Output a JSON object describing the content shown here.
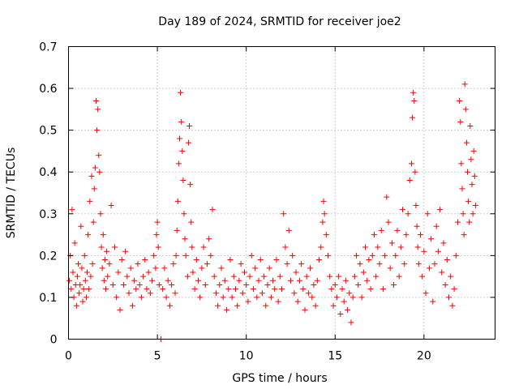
{
  "chart_data": {
    "type": "scatter",
    "title": "Day 189 of 2024, SRMTID for receiver joe2",
    "xlabel": "GPS time / hours",
    "ylabel": "SRMTID / TECUs",
    "xlim": [
      0,
      24
    ],
    "ylim": [
      0,
      0.7
    ],
    "xticks": [
      0,
      5,
      10,
      15,
      20
    ],
    "xtick_labels": [
      "0",
      "5",
      "10",
      "15",
      "20"
    ],
    "yticks": [
      0,
      0.1,
      0.2,
      0.3,
      0.4,
      0.5,
      0.6,
      0.7
    ],
    "ytick_labels": [
      "0",
      "0.1",
      "0.2",
      "0.3",
      "0.4",
      "0.5",
      "0.6",
      "0.7"
    ],
    "grid": true,
    "marker": "+",
    "color": "#ff0000",
    "series": [
      {
        "name": "SRMTID",
        "points": [
          [
            0.05,
            0.14
          ],
          [
            0.1,
            0.2
          ],
          [
            0.15,
            0.12
          ],
          [
            0.2,
            0.31
          ],
          [
            0.25,
            0.16
          ],
          [
            0.3,
            0.1
          ],
          [
            0.35,
            0.23
          ],
          [
            0.4,
            0.13
          ],
          [
            0.45,
            0.08
          ],
          [
            0.5,
            0.15
          ],
          [
            0.55,
            0.18
          ],
          [
            0.6,
            0.11
          ],
          [
            0.65,
            0.13
          ],
          [
            0.7,
            0.27
          ],
          [
            0.75,
            0.17
          ],
          [
            0.8,
            0.09
          ],
          [
            0.85,
            0.12
          ],
          [
            0.9,
            0.2
          ],
          [
            0.95,
            0.14
          ],
          [
            1.0,
            0.1
          ],
          [
            1.05,
            0.16
          ],
          [
            1.1,
            0.25
          ],
          [
            1.15,
            0.12
          ],
          [
            1.2,
            0.33
          ],
          [
            1.25,
            0.15
          ],
          [
            1.3,
            0.39
          ],
          [
            1.35,
            0.18
          ],
          [
            1.4,
            0.28
          ],
          [
            1.45,
            0.36
          ],
          [
            1.5,
            0.41
          ],
          [
            1.55,
            0.57
          ],
          [
            1.6,
            0.5
          ],
          [
            1.65,
            0.55
          ],
          [
            1.7,
            0.44
          ],
          [
            1.75,
            0.4
          ],
          [
            1.8,
            0.3
          ],
          [
            1.85,
            0.22
          ],
          [
            1.9,
            0.17
          ],
          [
            1.95,
            0.25
          ],
          [
            2.0,
            0.14
          ],
          [
            2.05,
            0.19
          ],
          [
            2.1,
            0.12
          ],
          [
            2.15,
            0.21
          ],
          [
            2.2,
            0.15
          ],
          [
            2.3,
            0.18
          ],
          [
            2.4,
            0.32
          ],
          [
            2.5,
            0.13
          ],
          [
            2.6,
            0.22
          ],
          [
            2.7,
            0.1
          ],
          [
            2.8,
            0.16
          ],
          [
            2.9,
            0.07
          ],
          [
            3.0,
            0.19
          ],
          [
            3.1,
            0.13
          ],
          [
            3.2,
            0.21
          ],
          [
            3.3,
            0.15
          ],
          [
            3.4,
            0.11
          ],
          [
            3.5,
            0.17
          ],
          [
            3.6,
            0.08
          ],
          [
            3.7,
            0.14
          ],
          [
            3.8,
            0.12
          ],
          [
            3.9,
            0.18
          ],
          [
            4.0,
            0.13
          ],
          [
            4.1,
            0.1
          ],
          [
            4.2,
            0.15
          ],
          [
            4.3,
            0.19
          ],
          [
            4.4,
            0.12
          ],
          [
            4.5,
            0.16
          ],
          [
            4.6,
            0.11
          ],
          [
            4.7,
            0.14
          ],
          [
            4.8,
            0.2
          ],
          [
            4.9,
            0.17
          ],
          [
            4.95,
            0.25
          ],
          [
            5.0,
            0.28
          ],
          [
            5.05,
            0.22
          ],
          [
            5.1,
            0.13
          ],
          [
            5.2,
            0.0
          ],
          [
            5.3,
            0.12
          ],
          [
            5.4,
            0.17
          ],
          [
            5.5,
            0.1
          ],
          [
            5.6,
            0.14
          ],
          [
            5.7,
            0.08
          ],
          [
            5.8,
            0.13
          ],
          [
            5.9,
            0.18
          ],
          [
            6.0,
            0.11
          ],
          [
            6.05,
            0.2
          ],
          [
            6.1,
            0.26
          ],
          [
            6.15,
            0.33
          ],
          [
            6.2,
            0.42
          ],
          [
            6.25,
            0.48
          ],
          [
            6.3,
            0.59
          ],
          [
            6.35,
            0.52
          ],
          [
            6.4,
            0.45
          ],
          [
            6.45,
            0.38
          ],
          [
            6.5,
            0.3
          ],
          [
            6.55,
            0.24
          ],
          [
            6.6,
            0.2
          ],
          [
            6.7,
            0.15
          ],
          [
            6.75,
            0.47
          ],
          [
            6.8,
            0.51
          ],
          [
            6.85,
            0.37
          ],
          [
            6.9,
            0.28
          ],
          [
            6.95,
            0.22
          ],
          [
            7.0,
            0.16
          ],
          [
            7.1,
            0.12
          ],
          [
            7.2,
            0.19
          ],
          [
            7.3,
            0.14
          ],
          [
            7.4,
            0.1
          ],
          [
            7.5,
            0.17
          ],
          [
            7.6,
            0.22
          ],
          [
            7.7,
            0.13
          ],
          [
            7.8,
            0.18
          ],
          [
            7.9,
            0.24
          ],
          [
            8.0,
            0.2
          ],
          [
            8.1,
            0.31
          ],
          [
            8.2,
            0.15
          ],
          [
            8.3,
            0.11
          ],
          [
            8.4,
            0.08
          ],
          [
            8.5,
            0.13
          ],
          [
            8.6,
            0.17
          ],
          [
            8.7,
            0.1
          ],
          [
            8.8,
            0.14
          ],
          [
            8.9,
            0.07
          ],
          [
            9.0,
            0.12
          ],
          [
            9.1,
            0.19
          ],
          [
            9.2,
            0.1
          ],
          [
            9.3,
            0.15
          ],
          [
            9.4,
            0.12
          ],
          [
            9.5,
            0.08
          ],
          [
            9.6,
            0.14
          ],
          [
            9.7,
            0.18
          ],
          [
            9.8,
            0.11
          ],
          [
            9.9,
            0.16
          ],
          [
            10.0,
            0.13
          ],
          [
            10.1,
            0.09
          ],
          [
            10.2,
            0.15
          ],
          [
            10.3,
            0.2
          ],
          [
            10.4,
            0.12
          ],
          [
            10.5,
            0.17
          ],
          [
            10.6,
            0.1
          ],
          [
            10.7,
            0.14
          ],
          [
            10.8,
            0.19
          ],
          [
            10.9,
            0.11
          ],
          [
            11.0,
            0.15
          ],
          [
            11.1,
            0.08
          ],
          [
            11.2,
            0.13
          ],
          [
            11.3,
            0.17
          ],
          [
            11.4,
            0.1
          ],
          [
            11.5,
            0.14
          ],
          [
            11.6,
            0.12
          ],
          [
            11.7,
            0.19
          ],
          [
            11.8,
            0.09
          ],
          [
            11.9,
            0.15
          ],
          [
            12.0,
            0.12
          ],
          [
            12.1,
            0.3
          ],
          [
            12.2,
            0.22
          ],
          [
            12.3,
            0.18
          ],
          [
            12.4,
            0.26
          ],
          [
            12.5,
            0.14
          ],
          [
            12.6,
            0.2
          ],
          [
            12.7,
            0.11
          ],
          [
            12.8,
            0.16
          ],
          [
            12.9,
            0.09
          ],
          [
            13.0,
            0.14
          ],
          [
            13.1,
            0.18
          ],
          [
            13.2,
            0.12
          ],
          [
            13.3,
            0.07
          ],
          [
            13.4,
            0.15
          ],
          [
            13.5,
            0.11
          ],
          [
            13.6,
            0.17
          ],
          [
            13.7,
            0.1
          ],
          [
            13.8,
            0.13
          ],
          [
            13.9,
            0.08
          ],
          [
            14.0,
            0.14
          ],
          [
            14.1,
            0.19
          ],
          [
            14.2,
            0.22
          ],
          [
            14.3,
            0.28
          ],
          [
            14.35,
            0.33
          ],
          [
            14.4,
            0.3
          ],
          [
            14.5,
            0.25
          ],
          [
            14.6,
            0.2
          ],
          [
            14.7,
            0.15
          ],
          [
            14.8,
            0.12
          ],
          [
            14.9,
            0.08
          ],
          [
            15.0,
            0.13
          ],
          [
            15.1,
            0.1
          ],
          [
            15.2,
            0.15
          ],
          [
            15.3,
            0.06
          ],
          [
            15.4,
            0.12
          ],
          [
            15.5,
            0.09
          ],
          [
            15.6,
            0.14
          ],
          [
            15.7,
            0.07
          ],
          [
            15.8,
            0.11
          ],
          [
            15.9,
            0.04
          ],
          [
            16.0,
            0.1
          ],
          [
            16.1,
            0.15
          ],
          [
            16.2,
            0.2
          ],
          [
            16.3,
            0.13
          ],
          [
            16.4,
            0.18
          ],
          [
            16.5,
            0.1
          ],
          [
            16.6,
            0.16
          ],
          [
            16.7,
            0.22
          ],
          [
            16.8,
            0.14
          ],
          [
            16.9,
            0.19
          ],
          [
            17.0,
            0.12
          ],
          [
            17.1,
            0.2
          ],
          [
            17.2,
            0.25
          ],
          [
            17.3,
            0.15
          ],
          [
            17.4,
            0.22
          ],
          [
            17.5,
            0.18
          ],
          [
            17.6,
            0.26
          ],
          [
            17.7,
            0.12
          ],
          [
            17.8,
            0.2
          ],
          [
            17.9,
            0.34
          ],
          [
            18.0,
            0.28
          ],
          [
            18.1,
            0.17
          ],
          [
            18.2,
            0.23
          ],
          [
            18.3,
            0.13
          ],
          [
            18.4,
            0.2
          ],
          [
            18.5,
            0.26
          ],
          [
            18.6,
            0.15
          ],
          [
            18.7,
            0.22
          ],
          [
            18.8,
            0.31
          ],
          [
            18.9,
            0.18
          ],
          [
            19.0,
            0.25
          ],
          [
            19.1,
            0.3
          ],
          [
            19.2,
            0.38
          ],
          [
            19.3,
            0.42
          ],
          [
            19.35,
            0.53
          ],
          [
            19.4,
            0.59
          ],
          [
            19.45,
            0.57
          ],
          [
            19.5,
            0.4
          ],
          [
            19.55,
            0.32
          ],
          [
            19.6,
            0.27
          ],
          [
            19.65,
            0.22
          ],
          [
            19.7,
            0.18
          ],
          [
            19.8,
            0.25
          ],
          [
            19.9,
            0.15
          ],
          [
            20.0,
            0.21
          ],
          [
            20.1,
            0.11
          ],
          [
            20.2,
            0.3
          ],
          [
            20.3,
            0.17
          ],
          [
            20.4,
            0.24
          ],
          [
            20.5,
            0.09
          ],
          [
            20.6,
            0.18
          ],
          [
            20.7,
            0.27
          ],
          [
            20.8,
            0.21
          ],
          [
            20.9,
            0.31
          ],
          [
            21.0,
            0.16
          ],
          [
            21.1,
            0.23
          ],
          [
            21.2,
            0.13
          ],
          [
            21.3,
            0.19
          ],
          [
            21.4,
            0.1
          ],
          [
            21.5,
            0.15
          ],
          [
            21.6,
            0.08
          ],
          [
            21.7,
            0.12
          ],
          [
            21.8,
            0.2
          ],
          [
            21.9,
            0.28
          ],
          [
            22.0,
            0.57
          ],
          [
            22.05,
            0.52
          ],
          [
            22.1,
            0.42
          ],
          [
            22.15,
            0.36
          ],
          [
            22.2,
            0.3
          ],
          [
            22.25,
            0.25
          ],
          [
            22.3,
            0.61
          ],
          [
            22.35,
            0.55
          ],
          [
            22.4,
            0.47
          ],
          [
            22.45,
            0.4
          ],
          [
            22.5,
            0.33
          ],
          [
            22.55,
            0.28
          ],
          [
            22.6,
            0.51
          ],
          [
            22.65,
            0.43
          ],
          [
            22.7,
            0.37
          ],
          [
            22.75,
            0.3
          ],
          [
            22.8,
            0.45
          ],
          [
            22.85,
            0.39
          ],
          [
            22.9,
            0.32
          ]
        ]
      }
    ]
  }
}
